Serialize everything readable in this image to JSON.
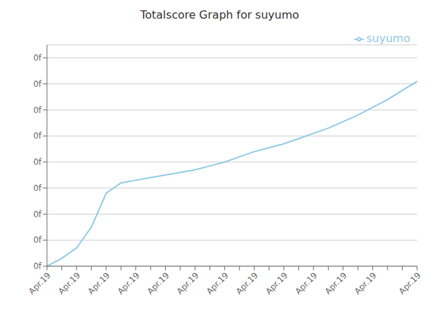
{
  "chart_data": {
    "type": "line",
    "title": "Totalscore Graph for suyumo",
    "categories": [
      "Apr.19",
      null,
      "Apr.19",
      null,
      "Apr.19",
      null,
      "Apr.19",
      null,
      "Apr.19",
      null,
      "Apr.19",
      null,
      "Apr.19",
      null,
      "Apr.19",
      null,
      "Apr.19",
      null,
      "Apr.19",
      null,
      "Apr.19",
      null,
      "Apr.19",
      null,
      null,
      "Apr.19"
    ],
    "series": [
      {
        "name": "suyumo",
        "color": "#8ECAE6",
        "values": [
          0,
          0.3,
          0.7,
          1.5,
          2.8,
          3.2,
          3.3,
          3.4,
          3.5,
          3.6,
          3.7,
          3.85,
          4.0,
          4.2,
          4.4,
          4.55,
          4.7,
          4.9,
          5.1,
          5.3,
          5.55,
          5.8,
          6.1,
          6.4,
          6.75,
          7.1
        ]
      }
    ],
    "ylim": [
      0,
      8.5
    ],
    "yticks": [
      {
        "value": 0,
        "label": "0f"
      },
      {
        "value": 1,
        "label": "0f"
      },
      {
        "value": 2,
        "label": "0f"
      },
      {
        "value": 3,
        "label": "0f"
      },
      {
        "value": 4,
        "label": "0f"
      },
      {
        "value": 5,
        "label": "0f"
      },
      {
        "value": 6,
        "label": "0f"
      },
      {
        "value": 7,
        "label": "0f"
      },
      {
        "value": 8,
        "label": "0f"
      }
    ],
    "grid": true,
    "legend": "upper right"
  }
}
